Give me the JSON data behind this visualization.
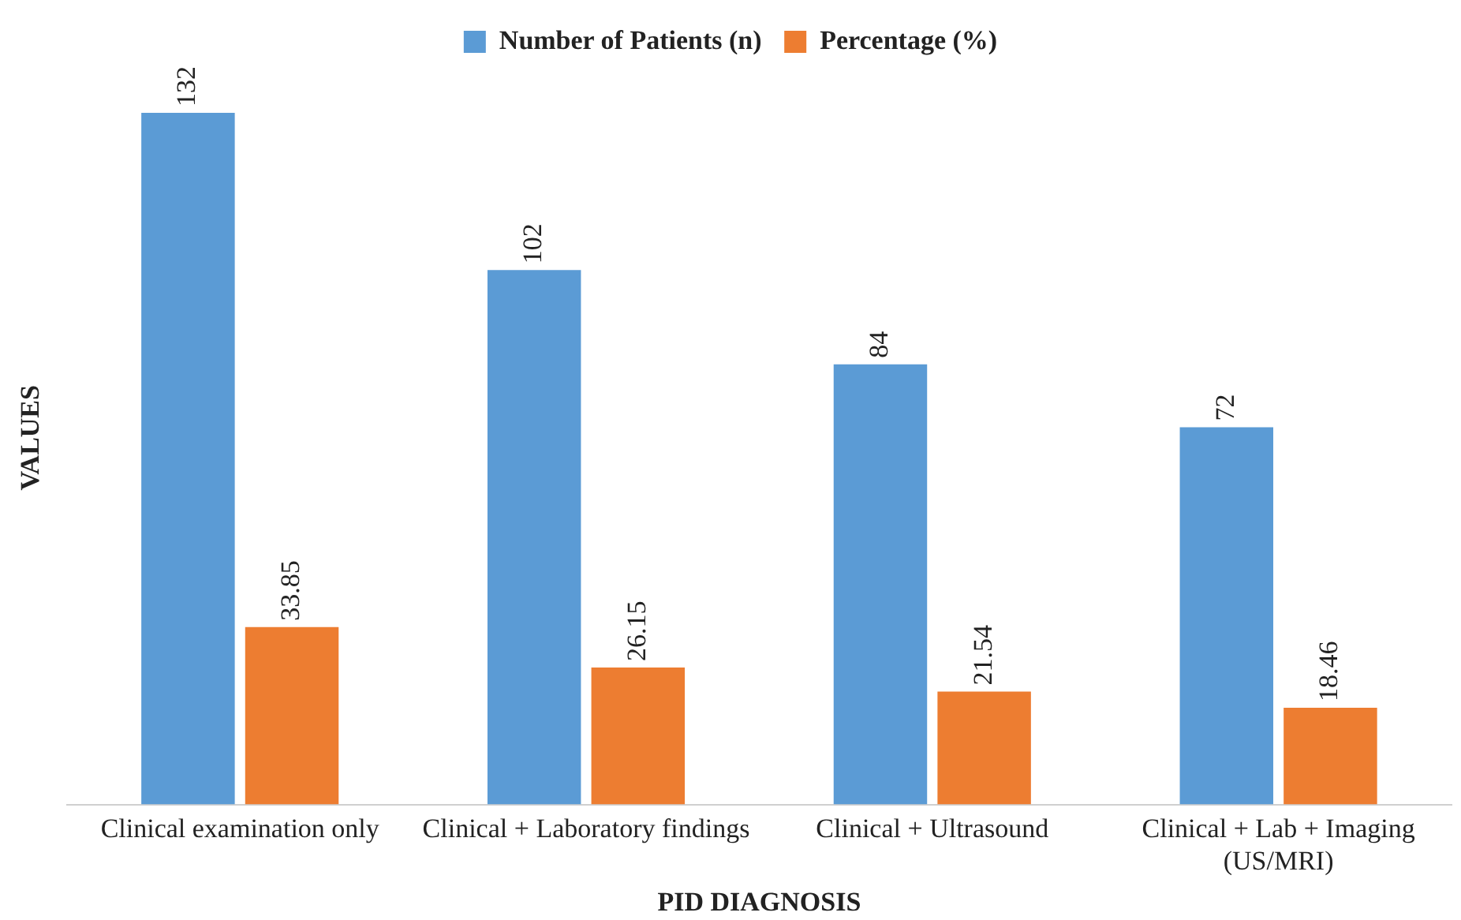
{
  "chart_data": {
    "type": "bar",
    "xlabel": "PID DIAGNOSIS",
    "ylabel": "VALUES",
    "categories": [
      "Clinical examination only",
      "Clinical + Laboratory findings",
      "Clinical + Ultrasound",
      "Clinical + Lab + Imaging (US/MRI)"
    ],
    "series": [
      {
        "name": "Number of Patients (n)",
        "color": "#5b9bd5",
        "values": [
          132,
          102,
          84,
          72
        ]
      },
      {
        "name": "Percentage (%)",
        "color": "#ed7d31",
        "values": [
          33.85,
          26.15,
          21.54,
          18.46
        ]
      }
    ],
    "data_labels": true,
    "legend": "top",
    "grid": false,
    "tick_labels": "x"
  }
}
